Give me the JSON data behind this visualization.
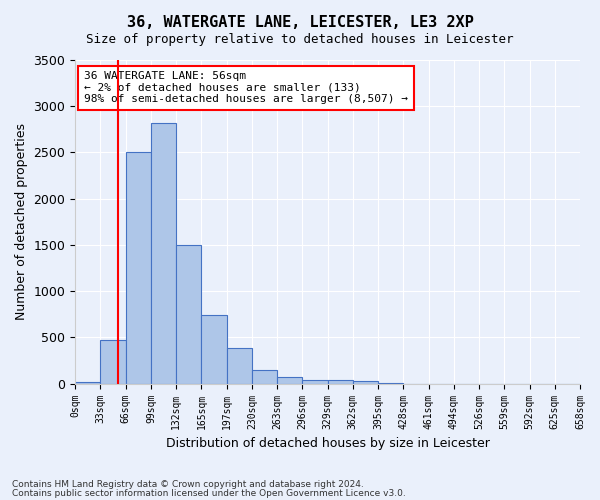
{
  "title_line1": "36, WATERGATE LANE, LEICESTER, LE3 2XP",
  "title_line2": "Size of property relative to detached houses in Leicester",
  "xlabel": "Distribution of detached houses by size in Leicester",
  "ylabel": "Number of detached properties",
  "bin_labels": [
    "0sqm",
    "33sqm",
    "66sqm",
    "99sqm",
    "132sqm",
    "165sqm",
    "197sqm",
    "230sqm",
    "263sqm",
    "296sqm",
    "329sqm",
    "362sqm",
    "395sqm",
    "428sqm",
    "461sqm",
    "494sqm",
    "526sqm",
    "559sqm",
    "592sqm",
    "625sqm",
    "658sqm"
  ],
  "bar_values": [
    20,
    470,
    2500,
    2820,
    1500,
    740,
    390,
    145,
    75,
    45,
    45,
    25,
    5,
    0,
    0,
    0,
    0,
    0,
    0,
    0
  ],
  "bar_color": "#aec6e8",
  "bar_edge_color": "#4472c4",
  "vline_x": 1.7,
  "vline_color": "red",
  "ylim": [
    0,
    3500
  ],
  "yticks": [
    0,
    500,
    1000,
    1500,
    2000,
    2500,
    3000,
    3500
  ],
  "annotation_text": "36 WATERGATE LANE: 56sqm\n← 2% of detached houses are smaller (133)\n98% of semi-detached houses are larger (8,507) →",
  "annotation_box_color": "white",
  "annotation_box_edge_color": "red",
  "footer_line1": "Contains HM Land Registry data © Crown copyright and database right 2024.",
  "footer_line2": "Contains public sector information licensed under the Open Government Licence v3.0.",
  "bg_color": "#eaf0fb",
  "plot_bg_color": "#eaf0fb"
}
